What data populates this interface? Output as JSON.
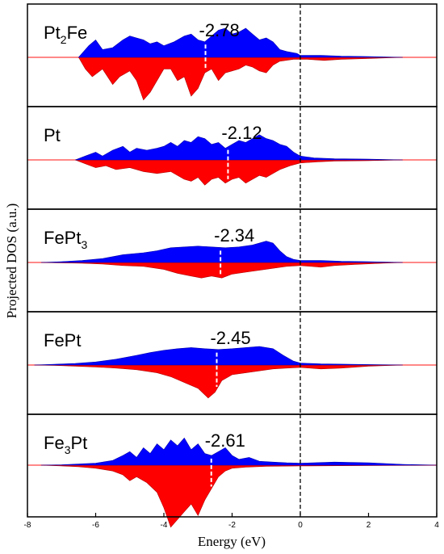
{
  "chart_data": {
    "type": "area",
    "xlabel": "Energy (eV)",
    "ylabel": "Projected DOS (a.u.)",
    "xlim": [
      -8,
      4
    ],
    "xticks": [
      -8,
      -6,
      -4,
      -2,
      0,
      2,
      4
    ],
    "fermi_level": 0,
    "colors": {
      "spin_up": "#0000ff",
      "spin_down": "#ff0000"
    },
    "panels": [
      {
        "name": "Pt",
        "subscript": "2",
        "suffix": "Fe",
        "d_band_center_label": "-2.78",
        "d_band_center": -2.78,
        "up": [
          [
            -6.5,
            0
          ],
          [
            -6.2,
            0.3
          ],
          [
            -6.0,
            0.45
          ],
          [
            -5.8,
            0.2
          ],
          [
            -5.5,
            0.25
          ],
          [
            -5.2,
            0.45
          ],
          [
            -5.0,
            0.55
          ],
          [
            -4.8,
            0.5
          ],
          [
            -4.6,
            0.45
          ],
          [
            -4.4,
            0.35
          ],
          [
            -4.2,
            0.4
          ],
          [
            -4.0,
            0.3
          ],
          [
            -3.7,
            0.4
          ],
          [
            -3.4,
            0.55
          ],
          [
            -3.2,
            0.6
          ],
          [
            -3.0,
            0.45
          ],
          [
            -2.8,
            0.4
          ],
          [
            -2.6,
            0.55
          ],
          [
            -2.4,
            0.7
          ],
          [
            -2.2,
            0.75
          ],
          [
            -2.0,
            0.6
          ],
          [
            -1.8,
            0.65
          ],
          [
            -1.6,
            0.75
          ],
          [
            -1.4,
            0.6
          ],
          [
            -1.2,
            0.45
          ],
          [
            -1.0,
            0.5
          ],
          [
            -0.8,
            0.4
          ],
          [
            -0.6,
            0.2
          ],
          [
            -0.4,
            0.15
          ],
          [
            -0.1,
            0.1
          ],
          [
            0.0,
            0.05
          ],
          [
            0.6,
            0.05
          ],
          [
            1.2,
            0.03
          ],
          [
            2.0,
            0.02
          ],
          [
            3.0,
            0
          ]
        ],
        "down": [
          [
            -6.5,
            0
          ],
          [
            -6.3,
            -0.3
          ],
          [
            -6.1,
            -0.5
          ],
          [
            -5.8,
            -0.3
          ],
          [
            -5.5,
            -0.7
          ],
          [
            -5.3,
            -0.5
          ],
          [
            -5.0,
            -0.35
          ],
          [
            -4.8,
            -0.6
          ],
          [
            -4.6,
            -1.1
          ],
          [
            -4.4,
            -0.9
          ],
          [
            -4.2,
            -0.6
          ],
          [
            -4.0,
            -0.3
          ],
          [
            -3.8,
            -0.3
          ],
          [
            -3.6,
            -0.6
          ],
          [
            -3.4,
            -0.5
          ],
          [
            -3.2,
            -1.0
          ],
          [
            -3.0,
            -0.8
          ],
          [
            -2.8,
            -0.4
          ],
          [
            -2.6,
            -0.3
          ],
          [
            -2.4,
            -0.6
          ],
          [
            -2.2,
            -0.4
          ],
          [
            -2.0,
            -0.35
          ],
          [
            -1.8,
            -0.3
          ],
          [
            -1.6,
            -0.2
          ],
          [
            -1.4,
            -0.25
          ],
          [
            -1.2,
            -0.35
          ],
          [
            -1.0,
            -0.4
          ],
          [
            -0.8,
            -0.2
          ],
          [
            -0.6,
            -0.1
          ],
          [
            -0.2,
            -0.05
          ],
          [
            0.2,
            -0.05
          ],
          [
            0.7,
            -0.08
          ],
          [
            1.2,
            -0.05
          ],
          [
            2.0,
            -0.03
          ],
          [
            3.0,
            0
          ]
        ]
      },
      {
        "name": "Pt",
        "subscript": "",
        "suffix": "",
        "d_band_center_label": "-2.12",
        "d_band_center": -2.12,
        "up": [
          [
            -6.6,
            0
          ],
          [
            -6.3,
            0.1
          ],
          [
            -6.0,
            0.2
          ],
          [
            -5.8,
            0.1
          ],
          [
            -5.5,
            0.25
          ],
          [
            -5.2,
            0.35
          ],
          [
            -5.0,
            0.2
          ],
          [
            -4.8,
            0.3
          ],
          [
            -4.5,
            0.25
          ],
          [
            -4.2,
            0.3
          ],
          [
            -4.0,
            0.35
          ],
          [
            -3.8,
            0.45
          ],
          [
            -3.6,
            0.35
          ],
          [
            -3.4,
            0.5
          ],
          [
            -3.2,
            0.45
          ],
          [
            -3.0,
            0.6
          ],
          [
            -2.8,
            0.55
          ],
          [
            -2.6,
            0.4
          ],
          [
            -2.4,
            0.45
          ],
          [
            -2.2,
            0.3
          ],
          [
            -2.0,
            0.4
          ],
          [
            -1.8,
            0.5
          ],
          [
            -1.6,
            0.45
          ],
          [
            -1.4,
            0.55
          ],
          [
            -1.2,
            0.65
          ],
          [
            -1.0,
            0.55
          ],
          [
            -0.8,
            0.5
          ],
          [
            -0.6,
            0.4
          ],
          [
            -0.4,
            0.35
          ],
          [
            -0.2,
            0.2
          ],
          [
            0.0,
            0.1
          ],
          [
            0.4,
            0.05
          ],
          [
            1.0,
            0.03
          ],
          [
            2.0,
            0.02
          ],
          [
            3.0,
            0
          ]
        ],
        "down": [
          [
            -6.6,
            0
          ],
          [
            -6.3,
            -0.1
          ],
          [
            -6.0,
            -0.2
          ],
          [
            -5.7,
            -0.15
          ],
          [
            -5.4,
            -0.25
          ],
          [
            -5.0,
            -0.2
          ],
          [
            -4.6,
            -0.3
          ],
          [
            -4.2,
            -0.35
          ],
          [
            -3.8,
            -0.3
          ],
          [
            -3.4,
            -0.5
          ],
          [
            -3.2,
            -0.55
          ],
          [
            -3.0,
            -0.45
          ],
          [
            -2.8,
            -0.65
          ],
          [
            -2.6,
            -0.5
          ],
          [
            -2.4,
            -0.45
          ],
          [
            -2.2,
            -0.6
          ],
          [
            -2.0,
            -0.5
          ],
          [
            -1.8,
            -0.45
          ],
          [
            -1.6,
            -0.6
          ],
          [
            -1.4,
            -0.5
          ],
          [
            -1.2,
            -0.4
          ],
          [
            -1.0,
            -0.45
          ],
          [
            -0.8,
            -0.35
          ],
          [
            -0.6,
            -0.25
          ],
          [
            -0.3,
            -0.15
          ],
          [
            0.0,
            -0.08
          ],
          [
            0.5,
            -0.05
          ],
          [
            1.0,
            -0.03
          ],
          [
            2.0,
            -0.02
          ],
          [
            3.0,
            0
          ]
        ]
      },
      {
        "name": "FePt",
        "subscript": "3",
        "suffix": "",
        "d_band_center_label": "-2.34",
        "d_band_center": -2.34,
        "up": [
          [
            -7.6,
            0
          ],
          [
            -7.0,
            0.02
          ],
          [
            -6.4,
            0.05
          ],
          [
            -5.8,
            0.1
          ],
          [
            -5.2,
            0.2
          ],
          [
            -4.6,
            0.25
          ],
          [
            -4.2,
            0.3
          ],
          [
            -3.8,
            0.38
          ],
          [
            -3.4,
            0.4
          ],
          [
            -3.0,
            0.42
          ],
          [
            -2.6,
            0.4
          ],
          [
            -2.2,
            0.38
          ],
          [
            -1.8,
            0.4
          ],
          [
            -1.4,
            0.45
          ],
          [
            -1.0,
            0.55
          ],
          [
            -0.8,
            0.5
          ],
          [
            -0.6,
            0.3
          ],
          [
            -0.4,
            0.15
          ],
          [
            -0.2,
            0.08
          ],
          [
            0.0,
            0.05
          ],
          [
            0.6,
            0.05
          ],
          [
            1.2,
            0.03
          ],
          [
            2.0,
            0.02
          ],
          [
            3.0,
            0
          ]
        ],
        "down": [
          [
            -7.6,
            0
          ],
          [
            -7.0,
            -0.01
          ],
          [
            -6.4,
            -0.02
          ],
          [
            -5.8,
            -0.04
          ],
          [
            -5.2,
            -0.08
          ],
          [
            -4.6,
            -0.1
          ],
          [
            -4.0,
            -0.18
          ],
          [
            -3.6,
            -0.28
          ],
          [
            -3.2,
            -0.35
          ],
          [
            -2.9,
            -0.4
          ],
          [
            -2.6,
            -0.35
          ],
          [
            -2.3,
            -0.4
          ],
          [
            -2.0,
            -0.3
          ],
          [
            -1.6,
            -0.25
          ],
          [
            -1.2,
            -0.2
          ],
          [
            -0.8,
            -0.15
          ],
          [
            -0.4,
            -0.1
          ],
          [
            0.0,
            -0.08
          ],
          [
            0.6,
            -0.12
          ],
          [
            1.0,
            -0.08
          ],
          [
            1.6,
            -0.05
          ],
          [
            2.4,
            -0.02
          ],
          [
            3.0,
            0
          ]
        ]
      },
      {
        "name": "FePt",
        "subscript": "",
        "suffix": "",
        "d_band_center_label": "-2.45",
        "d_band_center": -2.45,
        "up": [
          [
            -7.8,
            0
          ],
          [
            -7.2,
            0.02
          ],
          [
            -6.6,
            0.04
          ],
          [
            -6.0,
            0.08
          ],
          [
            -5.4,
            0.15
          ],
          [
            -4.8,
            0.25
          ],
          [
            -4.4,
            0.32
          ],
          [
            -4.0,
            0.38
          ],
          [
            -3.6,
            0.42
          ],
          [
            -3.2,
            0.45
          ],
          [
            -2.8,
            0.42
          ],
          [
            -2.4,
            0.4
          ],
          [
            -2.0,
            0.42
          ],
          [
            -1.6,
            0.45
          ],
          [
            -1.2,
            0.48
          ],
          [
            -0.8,
            0.42
          ],
          [
            -0.5,
            0.25
          ],
          [
            -0.2,
            0.1
          ],
          [
            0.0,
            0.05
          ],
          [
            0.6,
            0.03
          ],
          [
            1.4,
            0.02
          ],
          [
            2.2,
            0.01
          ],
          [
            3.0,
            0
          ]
        ],
        "down": [
          [
            -7.8,
            0
          ],
          [
            -7.2,
            -0.01
          ],
          [
            -6.6,
            -0.03
          ],
          [
            -6.0,
            -0.05
          ],
          [
            -5.4,
            -0.08
          ],
          [
            -4.8,
            -0.12
          ],
          [
            -4.2,
            -0.2
          ],
          [
            -3.8,
            -0.3
          ],
          [
            -3.4,
            -0.45
          ],
          [
            -3.0,
            -0.6
          ],
          [
            -2.7,
            -0.85
          ],
          [
            -2.5,
            -0.7
          ],
          [
            -2.3,
            -0.4
          ],
          [
            -2.0,
            -0.25
          ],
          [
            -1.6,
            -0.2
          ],
          [
            -1.2,
            -0.15
          ],
          [
            -0.8,
            -0.1
          ],
          [
            -0.4,
            -0.08
          ],
          [
            0.0,
            -0.06
          ],
          [
            0.6,
            -0.1
          ],
          [
            1.2,
            -0.08
          ],
          [
            2.0,
            -0.03
          ],
          [
            3.0,
            0
          ]
        ]
      },
      {
        "name": "Fe",
        "subscript": "3",
        "suffix": "Pt",
        "d_band_center_label": "-2.61",
        "d_band_center": -2.61,
        "up": [
          [
            -7.6,
            0
          ],
          [
            -7.0,
            0.01
          ],
          [
            -6.5,
            0.03
          ],
          [
            -6.0,
            0.05
          ],
          [
            -5.5,
            0.12
          ],
          [
            -5.2,
            0.25
          ],
          [
            -5.0,
            0.35
          ],
          [
            -4.8,
            0.2
          ],
          [
            -4.6,
            0.45
          ],
          [
            -4.4,
            0.3
          ],
          [
            -4.2,
            0.55
          ],
          [
            -4.0,
            0.4
          ],
          [
            -3.8,
            0.65
          ],
          [
            -3.6,
            0.5
          ],
          [
            -3.4,
            0.7
          ],
          [
            -3.2,
            0.4
          ],
          [
            -3.0,
            0.55
          ],
          [
            -2.8,
            0.3
          ],
          [
            -2.6,
            0.25
          ],
          [
            -2.4,
            0.35
          ],
          [
            -2.2,
            0.45
          ],
          [
            -2.0,
            0.25
          ],
          [
            -1.8,
            0.15
          ],
          [
            -1.5,
            0.2
          ],
          [
            -1.2,
            0.1
          ],
          [
            -0.8,
            0.08
          ],
          [
            -0.4,
            0.06
          ],
          [
            0.0,
            0.05
          ],
          [
            1.0,
            0.08
          ],
          [
            2.0,
            0.06
          ],
          [
            3.0,
            0.02
          ],
          [
            4.0,
            0
          ]
        ],
        "down": [
          [
            -7.6,
            0
          ],
          [
            -7.0,
            -0.02
          ],
          [
            -6.5,
            -0.04
          ],
          [
            -6.0,
            -0.08
          ],
          [
            -5.5,
            -0.15
          ],
          [
            -5.2,
            -0.25
          ],
          [
            -5.0,
            -0.4
          ],
          [
            -4.8,
            -0.3
          ],
          [
            -4.5,
            -0.45
          ],
          [
            -4.2,
            -0.7
          ],
          [
            -4.0,
            -1.1
          ],
          [
            -3.8,
            -1.6
          ],
          [
            -3.6,
            -1.4
          ],
          [
            -3.4,
            -1.2
          ],
          [
            -3.2,
            -1.0
          ],
          [
            -3.0,
            -1.3
          ],
          [
            -2.8,
            -0.9
          ],
          [
            -2.6,
            -0.6
          ],
          [
            -2.4,
            -0.3
          ],
          [
            -2.2,
            -0.15
          ],
          [
            -2.0,
            -0.08
          ],
          [
            -1.6,
            -0.05
          ],
          [
            -1.0,
            -0.03
          ],
          [
            0.0,
            -0.02
          ],
          [
            2.0,
            -0.01
          ],
          [
            4.0,
            0
          ]
        ]
      }
    ]
  }
}
